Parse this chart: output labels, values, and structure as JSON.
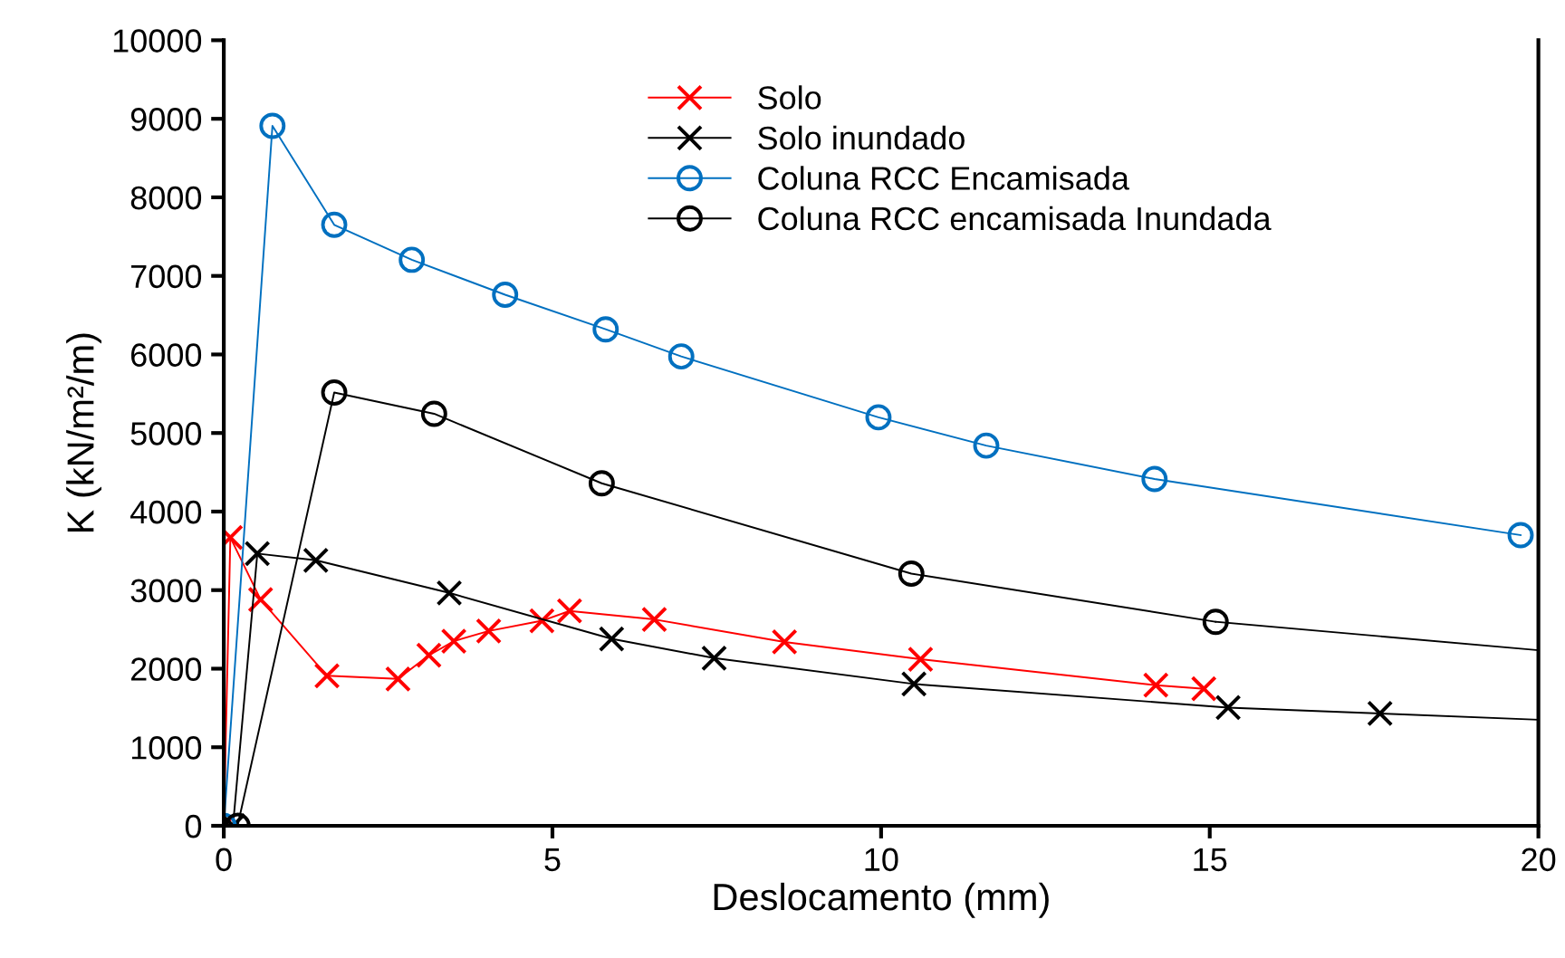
{
  "chart_data": {
    "type": "line",
    "xlabel": "Deslocamento (mm)",
    "ylabel": "K (kN/m²/m)",
    "xlim": [
      0,
      20
    ],
    "xticks": [
      0,
      5,
      10,
      15,
      20
    ],
    "ylim": [
      0,
      10000
    ],
    "yticks": [
      0,
      1000,
      2000,
      3000,
      4000,
      5000,
      6000,
      7000,
      8000,
      9000,
      10000
    ],
    "grid": false,
    "legend": "top",
    "series": [
      {
        "name": "Solo",
        "color": "#ff0000",
        "marker": "cross",
        "x": [
          0,
          0.1,
          0.56,
          1.57,
          2.65,
          3.12,
          3.5,
          4.03,
          4.84,
          5.26,
          6.55,
          8.53,
          10.6,
          14.18,
          14.91
        ],
        "values": [
          0,
          3670,
          2880,
          1910,
          1870,
          2170,
          2350,
          2480,
          2610,
          2735,
          2627,
          2340,
          2120,
          1790,
          1745
        ]
      },
      {
        "name": "Solo inundado",
        "color": "#000000",
        "marker": "cross",
        "x": [
          0.14,
          0.51,
          1.4,
          3.43,
          5.9,
          7.46,
          10.5,
          15.28,
          17.59
        ],
        "values": [
          0,
          3465,
          3380,
          2965,
          2380,
          2135,
          1805,
          1505,
          1430
        ]
      },
      {
        "name": "Coluna RCC Encamisada",
        "color": "#0070c0",
        "marker": "circle",
        "x": [
          0,
          0.74,
          1.68,
          2.86,
          4.28,
          5.81,
          6.96,
          9.96,
          11.6,
          14.16,
          19.73
        ],
        "values": [
          0,
          8910,
          7650,
          7205,
          6760,
          6320,
          5975,
          5200,
          4840,
          4415,
          3700
        ]
      },
      {
        "name": "Coluna RCC encamisada Inundada",
        "color": "#000000",
        "marker": "circle",
        "x": [
          0.21,
          1.68,
          3.2,
          5.75,
          10.46,
          15.09
        ],
        "values": [
          0,
          5515,
          5245,
          4360,
          3210,
          2597
        ]
      },
      {
        "color": "#000000",
        "marker": "none",
        "x": [
          17.59,
          20
        ],
        "values": [
          1430,
          1350
        ]
      },
      {
        "color": "#000000",
        "marker": "none",
        "x": [
          15.09,
          20
        ],
        "values": [
          2597,
          2235
        ]
      }
    ]
  }
}
